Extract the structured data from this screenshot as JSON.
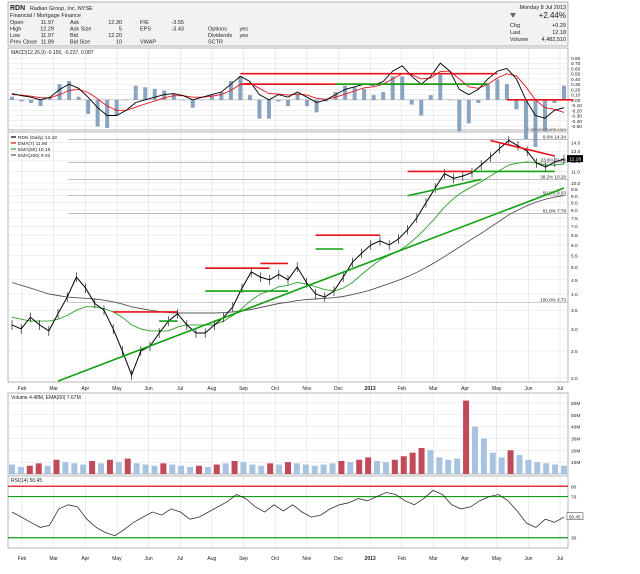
{
  "colors": {
    "accent_red": "#e8121b",
    "accent_green": "#12a013",
    "price": "#000000",
    "ema50": "#2da02d",
    "ema200": "#555555",
    "macd_line": "#000000",
    "macd_signal": "#e8121b",
    "macd_hist": "#8aa3bf",
    "vol_up": "#a8c3df",
    "vol_down": "#c04a5a",
    "grid": "#d8d8d8",
    "panel_bg": "#ffffff",
    "panel_border": "#888888",
    "header_bg": "#f2f2f2"
  },
  "header": {
    "symbol": "RDN",
    "company": "Radian Group, Inc.  NYSE",
    "sector": "Financial / Mortgage Finance",
    "date": "Monday 8 Jul 2013",
    "pct_change": "+2.44%",
    "rows": [
      [
        {
          "k": "Open",
          "v": "11.97"
        },
        {
          "k": "Ask",
          "v": "12.30"
        },
        {
          "k": "P/E",
          "v": "-3.55"
        }
      ],
      [
        {
          "k": "High",
          "v": "12.29"
        },
        {
          "k": "Ask Size",
          "v": "5"
        },
        {
          "k": "EPS",
          "v": "-3.43"
        },
        {
          "k": "Options",
          "v": "yes"
        }
      ],
      [
        {
          "k": "Low",
          "v": "11.97"
        },
        {
          "k": "Bid",
          "v": "12.20"
        },
        {
          "k": "Dividends",
          "v": "yes"
        }
      ],
      [
        {
          "k": "Prev Close",
          "v": "11.89"
        },
        {
          "k": "Bid Size",
          "v": "10"
        },
        {
          "k": "VWAP",
          "v": ""
        },
        {
          "k": "SCTR",
          "v": ""
        }
      ]
    ],
    "right_rows": [
      {
        "k": "Chg",
        "v": "+0.29"
      },
      {
        "k": "Last",
        "v": "12.18"
      },
      {
        "k": "Volume",
        "v": "4,482,510"
      }
    ]
  },
  "legends": {
    "macd": "MACD(12,26,9) -0.150, -0.237, 0.087",
    "price": [
      "RDN (Daily) 12.18",
      "EMA(7) 11.90",
      "EMA(50) 10.16",
      "EMA(200) 9.02"
    ],
    "volume": "Volume 4.48M, EMA(60) 7.67M",
    "rsi": "RSI(14) 50.45",
    "watermark": "© StockCharts.com"
  },
  "axes": {
    "months": [
      "Feb",
      "Mar",
      "Apr",
      "May",
      "Jun",
      "Jul",
      "Aug",
      "Sep",
      "Oct",
      "Nov",
      "Dec",
      "2013",
      "Feb",
      "Mar",
      "Apr",
      "May",
      "Jun",
      "Jul"
    ],
    "macd_ticks": [
      "0.80",
      "0.70",
      "0.60",
      "0.50",
      "0.40",
      "0.30",
      "0.20",
      "0.10",
      "0.00",
      "-0.10",
      "-0.20",
      "-0.30",
      "-0.40",
      "-0.50"
    ],
    "price_ticks": [
      "14.0",
      "13.0",
      "12.0",
      "11.0",
      "10.0",
      "9.5",
      "9.0",
      "8.5",
      "8.0",
      "7.5",
      "7.0",
      "6.5",
      "6.0",
      "5.5",
      "5.0",
      "4.5",
      "4.0",
      "3.5",
      "3.0",
      "2.5",
      "2.0"
    ],
    "volume_ticks": [
      "60M",
      "50M",
      "40M",
      "30M",
      "20M",
      "10M"
    ],
    "rsi_ticks": [
      "80",
      "70",
      "50",
      "30"
    ],
    "price_last": "12.18",
    "rsi_last": "50.45"
  },
  "fib": [
    {
      "label": "0.0%  14.34",
      "price": 14.34
    },
    {
      "label": "23.6%  11.84",
      "price": 11.84
    },
    {
      "label": "38.2%  10.29",
      "price": 10.29
    },
    {
      "label": "50.0%  9.03",
      "price": 9.03
    },
    {
      "label": "61.8%  7.78",
      "price": 7.78
    },
    {
      "label": "100.0%  3.73",
      "price": 3.73
    }
  ],
  "chart_data": {
    "type": "line",
    "x_labels": [
      "Feb",
      "Mar",
      "Apr",
      "May",
      "Jun",
      "Jul",
      "Aug",
      "Sep",
      "Oct",
      "Nov",
      "Dec",
      "2013",
      "Feb",
      "Mar",
      "Apr",
      "May",
      "Jun",
      "Jul"
    ],
    "price": {
      "name": "RDN (Daily)",
      "ylim": [
        2.0,
        14.5
      ],
      "scale": "log",
      "series": [
        {
          "name": "RDN",
          "values": [
            3.1,
            3.0,
            3.3,
            3.1,
            2.95,
            3.4,
            3.9,
            4.6,
            4.2,
            3.7,
            3.5,
            3.0,
            2.5,
            2.05,
            2.5,
            2.6,
            2.9,
            3.2,
            3.4,
            3.1,
            2.9,
            2.9,
            3.1,
            3.3,
            3.6,
            4.2,
            4.8,
            4.6,
            4.5,
            4.7,
            4.5,
            5.0,
            4.4,
            4.0,
            3.9,
            4.1,
            4.6,
            5.2,
            5.6,
            6.0,
            6.2,
            6.0,
            6.3,
            6.8,
            7.5,
            8.5,
            9.6,
            10.8,
            10.4,
            10.6,
            10.9,
            11.6,
            12.4,
            13.3,
            14.2,
            13.6,
            13.0,
            11.8,
            11.4,
            11.9,
            12.18
          ]
        },
        {
          "name": "EMA(50)",
          "values": [
            3.3,
            3.25,
            3.2,
            3.2,
            3.2,
            3.25,
            3.35,
            3.5,
            3.6,
            3.6,
            3.55,
            3.45,
            3.3,
            3.1,
            3.0,
            2.95,
            2.95,
            2.95,
            3.05,
            3.1,
            3.1,
            3.1,
            3.1,
            3.2,
            3.35,
            3.55,
            3.8,
            4.0,
            4.1,
            4.25,
            4.3,
            4.4,
            4.35,
            4.25,
            4.15,
            4.1,
            4.2,
            4.4,
            4.7,
            5.0,
            5.3,
            5.5,
            5.7,
            6.0,
            6.4,
            6.9,
            7.5,
            8.2,
            8.8,
            9.3,
            9.7,
            10.1,
            10.6,
            11.1,
            11.6,
            11.8,
            11.9,
            11.8,
            11.6,
            11.6,
            11.7
          ]
        },
        {
          "name": "EMA(200)",
          "values": [
            4.4,
            4.3,
            4.2,
            4.1,
            4.0,
            3.95,
            3.9,
            3.88,
            3.86,
            3.84,
            3.8,
            3.75,
            3.68,
            3.6,
            3.55,
            3.5,
            3.46,
            3.43,
            3.42,
            3.42,
            3.42,
            3.42,
            3.42,
            3.43,
            3.45,
            3.48,
            3.52,
            3.58,
            3.64,
            3.7,
            3.74,
            3.79,
            3.82,
            3.84,
            3.86,
            3.88,
            3.92,
            3.98,
            4.05,
            4.14,
            4.25,
            4.36,
            4.48,
            4.62,
            4.78,
            4.98,
            5.2,
            5.45,
            5.72,
            6.0,
            6.3,
            6.6,
            6.95,
            7.3,
            7.7,
            8.0,
            8.3,
            8.55,
            8.75,
            8.9,
            9.02
          ]
        }
      ],
      "annotations": {
        "trendlines": [
          {
            "color": "red",
            "points": [
              [
                23,
                3.45
              ],
              [
                30,
                3.45
              ]
            ]
          },
          {
            "color": "green",
            "points": [
              [
                28,
                3.2
              ],
              [
                30,
                3.2
              ]
            ]
          },
          {
            "color": "red",
            "points": [
              [
                33,
                4.95
              ],
              [
                40,
                4.95
              ]
            ]
          },
          {
            "color": "green",
            "points": [
              [
                33,
                4.1
              ],
              [
                42,
                4.1
              ]
            ]
          },
          {
            "color": "red",
            "points": [
              [
                39,
                5.15
              ],
              [
                42,
                5.15
              ]
            ]
          },
          {
            "color": "red",
            "points": [
              [
                45,
                6.5
              ],
              [
                52,
                6.5
              ]
            ]
          },
          {
            "color": "green",
            "points": [
              [
                45,
                5.8
              ],
              [
                48,
                5.8
              ]
            ]
          },
          {
            "color": "red",
            "points": [
              [
                55,
                11.0
              ],
              [
                62,
                11.0
              ]
            ]
          },
          {
            "color": "green",
            "points": [
              [
                55,
                9.0
              ],
              [
                63,
                10.3
              ]
            ]
          },
          {
            "color": "red",
            "points": [
              [
                64,
                14.2
              ],
              [
                71,
                12.5
              ]
            ]
          },
          {
            "color": "green",
            "points": [
              [
                62,
                11.0
              ],
              [
                71,
                11.0
              ]
            ]
          },
          {
            "color": "green",
            "points": [
              [
                17,
                1.95
              ],
              [
                75,
                9.6
              ]
            ]
          }
        ]
      }
    },
    "macd": {
      "name": "MACD(12,26,9)",
      "ylim": [
        -0.5,
        0.8
      ],
      "series": [
        {
          "name": "MACD",
          "values": [
            0.12,
            0.08,
            0.05,
            0.0,
            0.05,
            0.2,
            0.3,
            0.22,
            0.05,
            -0.15,
            -0.3,
            -0.3,
            -0.2,
            -0.05,
            0.0,
            0.05,
            0.1,
            0.12,
            0.08,
            0.0,
            0.05,
            0.1,
            0.15,
            0.3,
            0.45,
            0.35,
            0.1,
            0.0,
            0.1,
            0.05,
            0.15,
            0.05,
            -0.05,
            0.0,
            0.1,
            0.2,
            0.25,
            0.3,
            0.28,
            0.35,
            0.55,
            0.65,
            0.45,
            0.3,
            0.45,
            0.7,
            0.55,
            0.2,
            0.1,
            0.2,
            0.4,
            0.55,
            0.6,
            0.4,
            0.0,
            -0.3,
            -0.35,
            -0.2,
            -0.15
          ]
        },
        {
          "name": "Signal",
          "values": [
            0.1,
            0.09,
            0.07,
            0.04,
            0.04,
            0.1,
            0.18,
            0.2,
            0.14,
            0.02,
            -0.12,
            -0.2,
            -0.2,
            -0.14,
            -0.08,
            -0.02,
            0.04,
            0.08,
            0.08,
            0.05,
            0.05,
            0.07,
            0.1,
            0.18,
            0.3,
            0.32,
            0.22,
            0.12,
            0.11,
            0.09,
            0.11,
            0.09,
            0.03,
            0.01,
            0.05,
            0.11,
            0.17,
            0.23,
            0.25,
            0.3,
            0.4,
            0.5,
            0.48,
            0.4,
            0.42,
            0.54,
            0.55,
            0.4,
            0.25,
            0.22,
            0.3,
            0.42,
            0.5,
            0.46,
            0.25,
            0.0,
            -0.15,
            -0.18,
            -0.24
          ]
        }
      ],
      "annotations": {
        "trendlines": [
          {
            "color": "red",
            "points": [
              [
                26,
                0.5
              ],
              [
                53,
                0.5
              ]
            ]
          },
          {
            "color": "red",
            "points": [
              [
                26,
                0.3
              ],
              [
                52,
                0.3
              ]
            ]
          },
          {
            "color": "green",
            "points": [
              [
                36,
                0.3
              ],
              [
                52,
                0.3
              ]
            ]
          },
          {
            "color": "red",
            "points": [
              [
                54,
                0.0
              ],
              [
                61,
                0.0
              ]
            ]
          }
        ]
      }
    },
    "volume": {
      "name": "Volume",
      "unit": "M",
      "ylim": [
        0,
        65
      ],
      "values": [
        8,
        6,
        7,
        9,
        7,
        12,
        10,
        9,
        8,
        11,
        9,
        12,
        10,
        13,
        9,
        8,
        7,
        9,
        8,
        7,
        6,
        7,
        6,
        8,
        9,
        11,
        10,
        8,
        7,
        9,
        8,
        10,
        9,
        8,
        7,
        8,
        9,
        11,
        10,
        12,
        14,
        11,
        10,
        12,
        15,
        18,
        22,
        20,
        14,
        12,
        13,
        62,
        40,
        30,
        18,
        14,
        20,
        16,
        12,
        10,
        9,
        8,
        7
      ]
    },
    "rsi": {
      "name": "RSI(14)",
      "ylim": [
        20,
        90
      ],
      "values": [
        55,
        50,
        45,
        40,
        42,
        58,
        62,
        60,
        48,
        40,
        35,
        32,
        38,
        45,
        50,
        55,
        52,
        58,
        55,
        48,
        50,
        55,
        60,
        65,
        72,
        68,
        60,
        55,
        62,
        56,
        62,
        55,
        50,
        52,
        58,
        62,
        64,
        68,
        66,
        70,
        74,
        72,
        66,
        62,
        68,
        76,
        72,
        62,
        58,
        60,
        66,
        70,
        72,
        66,
        56,
        44,
        40,
        48,
        45,
        50
      ]
    }
  }
}
